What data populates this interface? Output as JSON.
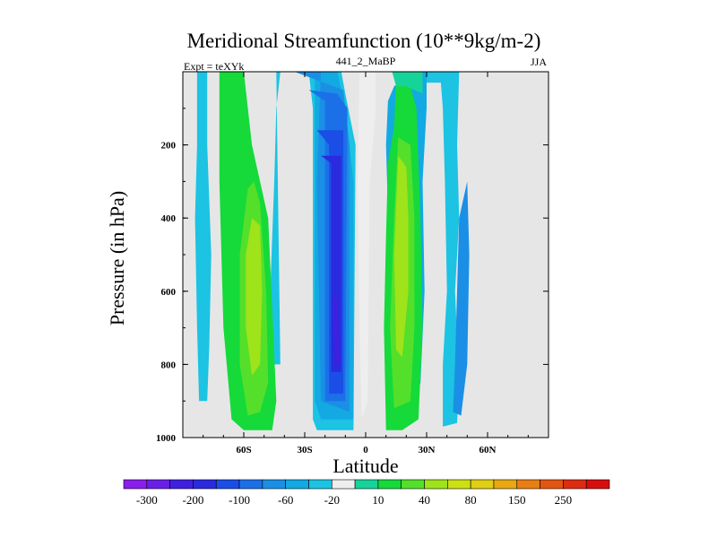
{
  "chart_data": {
    "type": "heatmap",
    "title": "Meridional Streamfunction (10**9kg/m-2)",
    "left_label": "Expt = teXYk",
    "center_label": "441_2_MaBP",
    "right_label": "JJA",
    "xlabel": "Latitude",
    "ylabel": "Pressure (in hPa)",
    "xlim": [
      -90,
      90
    ],
    "ylim": [
      1000,
      0
    ],
    "x_ticks": [
      {
        "value": -60,
        "label": "60S"
      },
      {
        "value": -30,
        "label": "30S"
      },
      {
        "value": 0,
        "label": "0"
      },
      {
        "value": 30,
        "label": "30N"
      },
      {
        "value": 60,
        "label": "60N"
      }
    ],
    "y_ticks": [
      {
        "value": 200,
        "label": "200"
      },
      {
        "value": 400,
        "label": "400"
      },
      {
        "value": 600,
        "label": "600"
      },
      {
        "value": 800,
        "label": "800"
      },
      {
        "value": 1000,
        "label": "1000"
      }
    ],
    "background_color": "#e6e6e6",
    "colorbar": {
      "labels": [
        "-300",
        "-200",
        "-100",
        "-60",
        "-20",
        "10",
        "40",
        "80",
        "150",
        "250"
      ],
      "colors": [
        "#8a1eea",
        "#6a1fe6",
        "#4020e0",
        "#2a2adf",
        "#1a4ee6",
        "#1b70e8",
        "#1a8fe5",
        "#13a9e3",
        "#1cc3e3",
        "#eeeeee",
        "#16d39a",
        "#15da3a",
        "#54e02a",
        "#9fe31a",
        "#cde014",
        "#e0cf12",
        "#e8a812",
        "#e87e14",
        "#e45412",
        "#de2c12",
        "#d80e0e"
      ]
    },
    "contour_fill_levels": [
      {
        "color": "#1cc3e3",
        "regions": [
          [
            [
              -83,
              0
            ],
            [
              -78,
              0
            ],
            [
              -78,
              200
            ],
            [
              -76,
              500
            ],
            [
              -77,
              750
            ],
            [
              -78,
              900
            ],
            [
              -82,
              900
            ],
            [
              -83,
              700
            ],
            [
              -84,
              400
            ],
            [
              -83,
              200
            ]
          ],
          [
            [
              -44,
              0
            ],
            [
              -28,
              0
            ],
            [
              -26,
              100
            ],
            [
              -26,
              950
            ],
            [
              -24,
              980
            ],
            [
              -6,
              980
            ],
            [
              -5,
              200
            ],
            [
              -10,
              60
            ],
            [
              -12,
              0
            ],
            [
              -20,
              0
            ],
            [
              -21,
              0
            ],
            [
              -42,
              0
            ],
            [
              -44,
              100
            ],
            [
              -45,
              300
            ],
            [
              -47,
              600
            ],
            [
              -46,
              800
            ],
            [
              -42,
              800
            ]
          ],
          [
            [
              26,
              0
            ],
            [
              46,
              0
            ],
            [
              45,
              200
            ],
            [
              46,
              400
            ],
            [
              44,
              600
            ],
            [
              46,
              850
            ],
            [
              45,
              960
            ],
            [
              38,
              970
            ],
            [
              38,
              800
            ],
            [
              40,
              600
            ],
            [
              39,
              300
            ],
            [
              38,
              100
            ],
            [
              37,
              30
            ],
            [
              30,
              30
            ],
            [
              28,
              60
            ]
          ]
        ]
      },
      {
        "color": "#13a9e3",
        "regions": [
          [
            [
              -40,
              0
            ],
            [
              -25,
              0
            ],
            [
              -25,
              900
            ],
            [
              -22,
              950
            ],
            [
              -6,
              950
            ],
            [
              -6,
              300
            ],
            [
              -10,
              100
            ],
            [
              -14,
              0
            ]
          ],
          [
            [
              26,
              0
            ],
            [
              30,
              0
            ],
            [
              30,
              100
            ],
            [
              28,
              300
            ],
            [
              29,
              600
            ],
            [
              27,
              850
            ],
            [
              22,
              950
            ],
            [
              14,
              950
            ],
            [
              10,
              200
            ],
            [
              11,
              80
            ],
            [
              14,
              40
            ],
            [
              19,
              20
            ]
          ]
        ]
      },
      {
        "color": "#1a8fe5",
        "regions": [
          [
            [
              -35,
              0
            ],
            [
              -22,
              0
            ],
            [
              -24,
              300
            ],
            [
              -22,
              900
            ],
            [
              -8,
              930
            ],
            [
              -8,
              200
            ],
            [
              -11,
              50
            ]
          ],
          [
            [
              50,
              300
            ],
            [
              51,
              500
            ],
            [
              50,
              800
            ],
            [
              47,
              940
            ],
            [
              43,
              930
            ],
            [
              44,
              800
            ],
            [
              45,
              600
            ],
            [
              46,
              400
            ]
          ]
        ]
      },
      {
        "color": "#1b70e8",
        "regions": [
          [
            [
              -28,
              50
            ],
            [
              -20,
              80
            ],
            [
              -20,
              900
            ],
            [
              -10,
              900
            ],
            [
              -9,
              100
            ],
            [
              -14,
              60
            ]
          ]
        ]
      },
      {
        "color": "#1a4ee6",
        "regions": [
          [
            [
              -24,
              160
            ],
            [
              -18,
              200
            ],
            [
              -18,
              880
            ],
            [
              -11,
              880
            ],
            [
              -11,
              160
            ]
          ]
        ]
      },
      {
        "color": "#2a2adf",
        "regions": [
          [
            [
              -22,
              230
            ],
            [
              -17,
              250
            ],
            [
              -17,
              820
            ],
            [
              -12,
              820
            ],
            [
              -12,
              230
            ]
          ]
        ]
      },
      {
        "color": "#4020e0",
        "regions": [
          [
            [
              -16,
              620
            ],
            [
              -14,
              620
            ],
            [
              -13,
              800
            ],
            [
              -15,
              800
            ]
          ]
        ]
      },
      {
        "color": "#15da3a",
        "regions": [
          [
            [
              -72,
              0
            ],
            [
              -60,
              0
            ],
            [
              -56,
              200
            ],
            [
              -48,
              400
            ],
            [
              -44,
              900
            ],
            [
              -46,
              980
            ],
            [
              -60,
              980
            ],
            [
              -66,
              950
            ],
            [
              -70,
              700
            ],
            [
              -72,
              300
            ]
          ],
          [
            [
              11,
              250
            ],
            [
              14,
              150
            ],
            [
              15,
              20
            ],
            [
              21,
              20
            ],
            [
              25,
              100
            ],
            [
              27,
              400
            ],
            [
              28,
              700
            ],
            [
              26,
              950
            ],
            [
              18,
              980
            ],
            [
              10,
              980
            ],
            [
              9,
              700
            ],
            [
              10,
              450
            ]
          ]
        ]
      },
      {
        "color": "#54e02a",
        "regions": [
          [
            [
              -55,
              300
            ],
            [
              -52,
              360
            ],
            [
              -49,
              600
            ],
            [
              -48,
              850
            ],
            [
              -52,
              930
            ],
            [
              -58,
              940
            ],
            [
              -62,
              800
            ],
            [
              -62,
              500
            ],
            [
              -58,
              320
            ]
          ],
          [
            [
              16,
              180
            ],
            [
              22,
              200
            ],
            [
              24,
              400
            ],
            [
              24,
              700
            ],
            [
              22,
              900
            ],
            [
              14,
              920
            ],
            [
              12,
              700
            ],
            [
              14,
              400
            ]
          ]
        ]
      },
      {
        "color": "#9fe31a",
        "regions": [
          [
            [
              -56,
              400
            ],
            [
              -52,
              420
            ],
            [
              -51,
              600
            ],
            [
              -52,
              800
            ],
            [
              -56,
              830
            ],
            [
              -59,
              700
            ],
            [
              -59,
              500
            ]
          ],
          [
            [
              16,
              230
            ],
            [
              20,
              260
            ],
            [
              21,
              400
            ],
            [
              21,
              600
            ],
            [
              18,
              780
            ],
            [
              15,
              760
            ],
            [
              14,
              500
            ]
          ]
        ]
      },
      {
        "color": "#16d39a",
        "regions": [
          [
            [
              13,
              0
            ],
            [
              28,
              0
            ],
            [
              28,
              60
            ],
            [
              20,
              40
            ],
            [
              15,
              40
            ]
          ]
        ]
      },
      {
        "color": "#eeeeee",
        "regions": [
          [
            [
              -3,
              0
            ],
            [
              5,
              0
            ],
            [
              5,
              100
            ],
            [
              2,
              300
            ],
            [
              1,
              900
            ],
            [
              -2,
              950
            ],
            [
              -3,
              700
            ],
            [
              -4,
              300
            ]
          ]
        ]
      }
    ]
  }
}
